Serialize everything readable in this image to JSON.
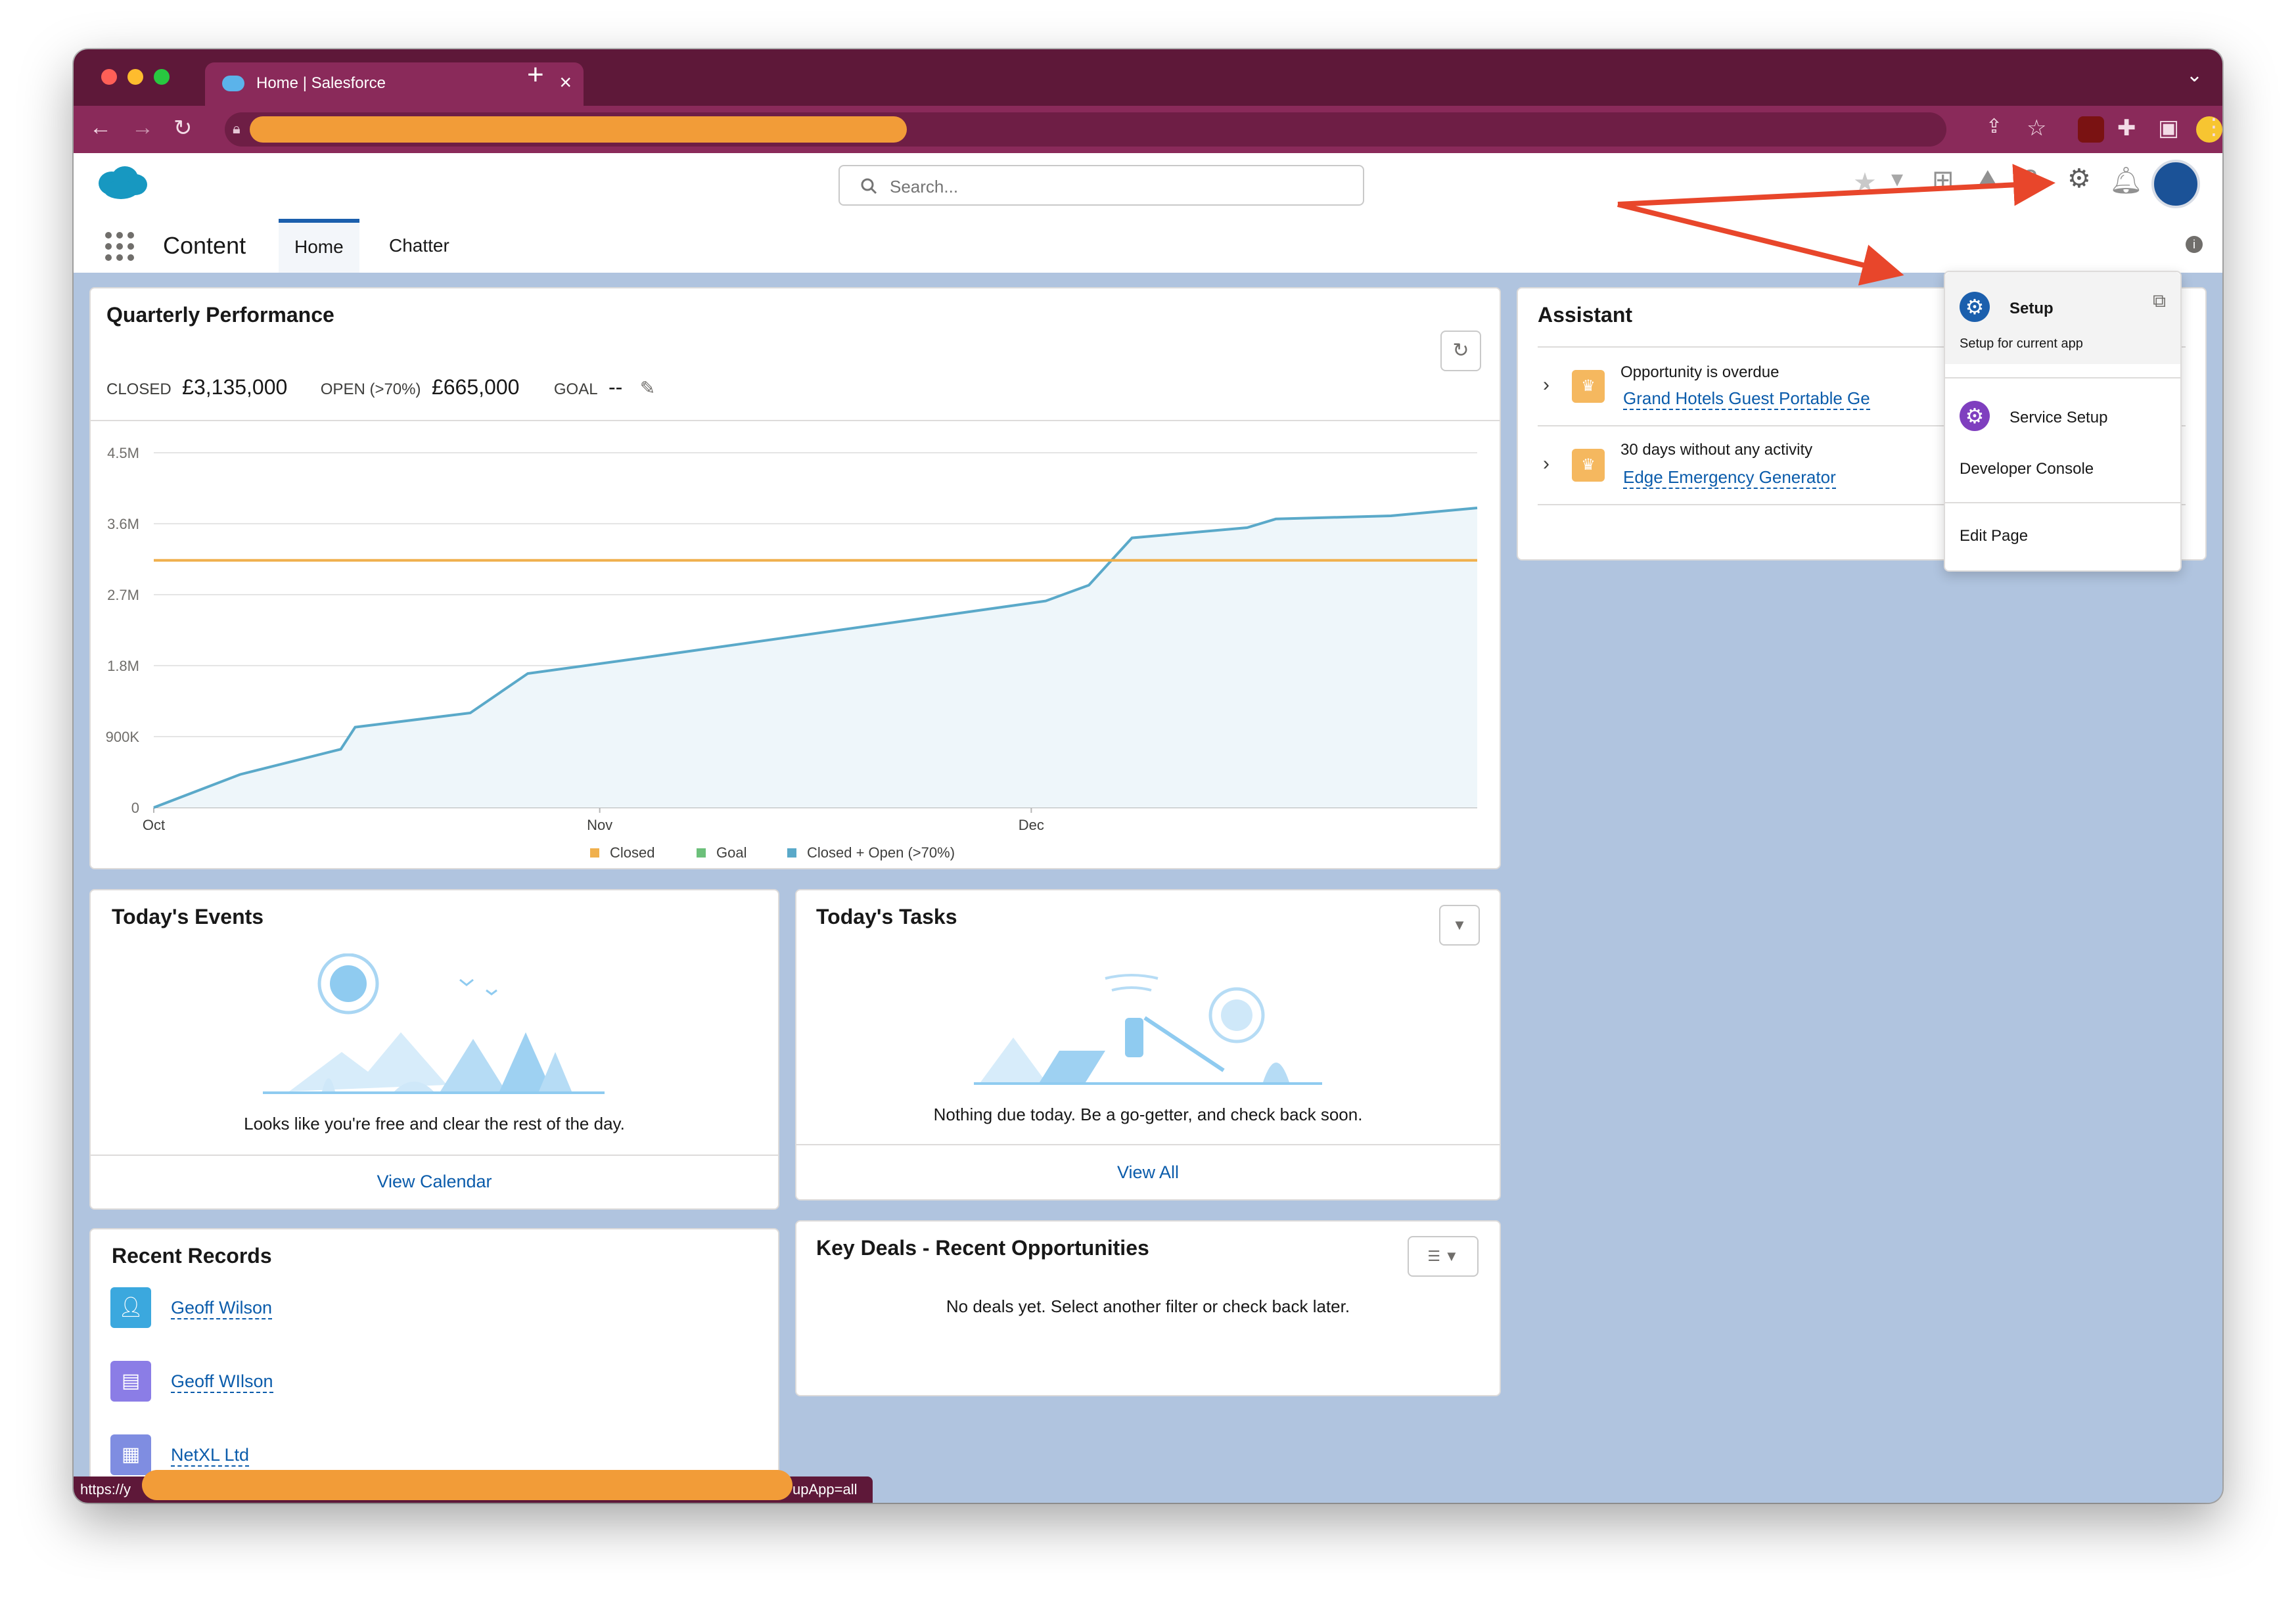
{
  "browser": {
    "tab_title": "Home | Salesforce",
    "status_prefix": "https://y",
    "status_suffix": "upApp=all"
  },
  "header": {
    "search_placeholder": "Search..."
  },
  "nav": {
    "app_name": "Content",
    "tabs": [
      {
        "label": "Home",
        "active": true
      },
      {
        "label": "Chatter",
        "active": false
      }
    ]
  },
  "quarterly": {
    "title": "Quarterly Performance",
    "closed_label": "CLOSED",
    "closed_value": "£3,135,000",
    "open_label": "OPEN (>70%)",
    "open_value": "£665,000",
    "goal_label": "GOAL",
    "goal_value": "--"
  },
  "chart_data": {
    "type": "line",
    "title": "",
    "xlabel": "",
    "ylabel": "",
    "x_ticks": [
      "Oct",
      "Nov",
      "Dec"
    ],
    "y_ticks": [
      "0",
      "900K",
      "1.8M",
      "2.7M",
      "3.6M",
      "4.5M"
    ],
    "ylim": [
      0,
      4500000
    ],
    "grid": true,
    "legend": {
      "placement": "bottom",
      "entries": [
        {
          "name": "Closed",
          "color": "#f0b04d"
        },
        {
          "name": "Goal",
          "color": "#6cc07a"
        },
        {
          "name": "Closed + Open (>70%)",
          "color": "#5aa9c9"
        }
      ]
    },
    "series": [
      {
        "name": "Closed",
        "values": [
          3135000
        ]
      },
      {
        "name": "Closed + Open (>70%)",
        "x": [
          0,
          6,
          13,
          14,
          22,
          26,
          34,
          62,
          65,
          68,
          76,
          78,
          86,
          92
        ],
        "values": [
          0,
          420000,
          740000,
          1020000,
          1200000,
          1700000,
          1900000,
          2620000,
          2820000,
          3420000,
          3550000,
          3660000,
          3700000,
          3800000
        ],
        "x_max": 92,
        "x_tick_positions": [
          0,
          31,
          61
        ]
      }
    ]
  },
  "events": {
    "title": "Today's Events",
    "message": "Looks like you're free and clear the rest of the day.",
    "footer": "View Calendar"
  },
  "tasks": {
    "title": "Today's Tasks",
    "message": "Nothing due today. Be a go-getter, and check back soon.",
    "footer": "View All"
  },
  "recent": {
    "title": "Recent Records",
    "items": [
      {
        "label": "Geoff Wilson",
        "icon": "contact-icon",
        "color": "#3ba8de"
      },
      {
        "label": "Geoff WIlson",
        "icon": "lead-icon",
        "color": "#8b7de6"
      },
      {
        "label": "NetXL Ltd",
        "icon": "account-icon",
        "color": "#7f8de1"
      }
    ]
  },
  "deals": {
    "title": "Key Deals - Recent Opportunities",
    "message": "No deals yet. Select another filter or check back later."
  },
  "assistant": {
    "title": "Assistant",
    "items": [
      {
        "heading": "Opportunity is overdue",
        "link": "Grand Hotels Guest Portable Ge"
      },
      {
        "heading": "30 days without any activity",
        "link": "Edge Emergency Generator"
      }
    ]
  },
  "setup_menu": {
    "setup_label": "Setup",
    "setup_sub": "Setup for current app",
    "service_setup": "Service Setup",
    "developer_console": "Developer Console",
    "edit_page": "Edit Page"
  }
}
